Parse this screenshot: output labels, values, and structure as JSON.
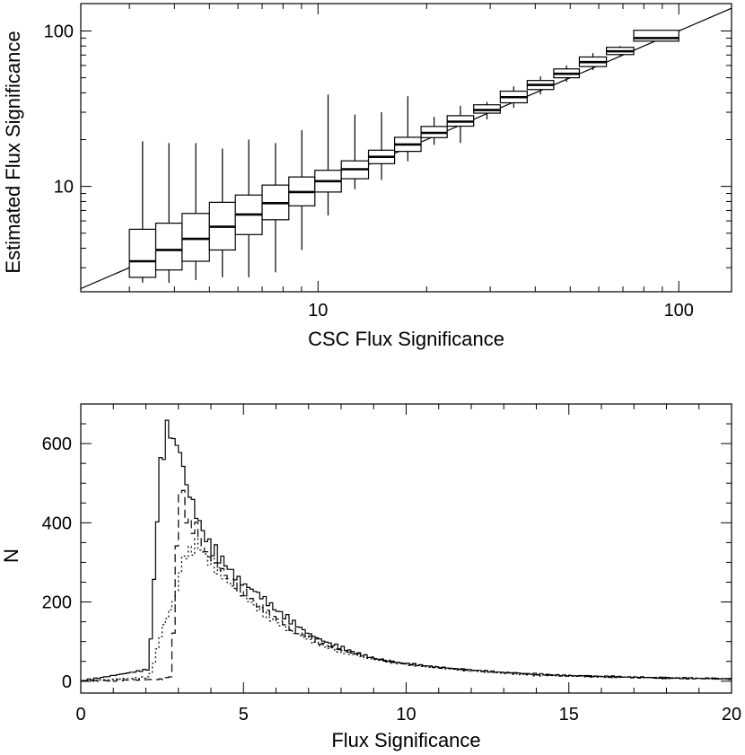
{
  "chart_data": [
    {
      "type": "box",
      "scale": "log-log",
      "title": "",
      "xlabel": "CSC Flux Significance",
      "ylabel": "Estimated Flux Significance",
      "xlim": [
        2.2,
        140
      ],
      "ylim": [
        2.1,
        150
      ],
      "xticks": [
        {
          "value": 10,
          "label": "10"
        },
        {
          "value": 100,
          "label": "100"
        }
      ],
      "yticks": [
        {
          "value": 10,
          "label": "10"
        },
        {
          "value": 100,
          "label": "100"
        }
      ],
      "reference_line": "y = x",
      "boxes": [
        {
          "x0": 3.0,
          "x1": 3.55,
          "q1": 2.6,
          "median": 3.3,
          "q3": 5.3,
          "wlo": 2.4,
          "whi": 19.5
        },
        {
          "x0": 3.55,
          "x1": 4.2,
          "q1": 2.9,
          "median": 3.9,
          "q3": 5.8,
          "wlo": 2.4,
          "whi": 19.0
        },
        {
          "x0": 4.2,
          "x1": 5.0,
          "q1": 3.3,
          "median": 4.6,
          "q3": 6.7,
          "wlo": 2.5,
          "whi": 19.0
        },
        {
          "x0": 5.0,
          "x1": 5.9,
          "q1": 3.9,
          "median": 5.5,
          "q3": 7.9,
          "wlo": 2.6,
          "whi": 17.5
        },
        {
          "x0": 5.9,
          "x1": 7.0,
          "q1": 4.9,
          "median": 6.6,
          "q3": 8.8,
          "wlo": 2.6,
          "whi": 20.0
        },
        {
          "x0": 7.0,
          "x1": 8.3,
          "q1": 6.1,
          "median": 7.8,
          "q3": 10.2,
          "wlo": 2.8,
          "whi": 19.0
        },
        {
          "x0": 8.3,
          "x1": 9.8,
          "q1": 7.5,
          "median": 9.2,
          "q3": 11.5,
          "wlo": 3.9,
          "whi": 23.0
        },
        {
          "x0": 9.8,
          "x1": 11.6,
          "q1": 9.2,
          "median": 10.8,
          "q3": 12.7,
          "wlo": 6.5,
          "whi": 39.0
        },
        {
          "x0": 11.6,
          "x1": 13.8,
          "q1": 11.2,
          "median": 12.9,
          "q3": 14.6,
          "wlo": 9.6,
          "whi": 29.0
        },
        {
          "x0": 13.8,
          "x1": 16.3,
          "q1": 14.0,
          "median": 15.5,
          "q3": 17.1,
          "wlo": 11.0,
          "whi": 30.0
        },
        {
          "x0": 16.3,
          "x1": 19.3,
          "q1": 16.8,
          "median": 18.6,
          "q3": 20.7,
          "wlo": 14.5,
          "whi": 38.0
        },
        {
          "x0": 19.3,
          "x1": 22.8,
          "q1": 20.6,
          "median": 22.1,
          "q3": 24.3,
          "wlo": 18.5,
          "whi": 28.0
        },
        {
          "x0": 22.8,
          "x1": 27.0,
          "q1": 24.4,
          "median": 26.1,
          "q3": 28.5,
          "wlo": 19.0,
          "whi": 33.0
        },
        {
          "x0": 27.0,
          "x1": 32.0,
          "q1": 29.6,
          "median": 31.0,
          "q3": 33.5,
          "wlo": 27.0,
          "whi": 35.0
        },
        {
          "x0": 32.0,
          "x1": 38.0,
          "q1": 34.5,
          "median": 37.5,
          "q3": 41.0,
          "wlo": 32.0,
          "whi": 44.0
        },
        {
          "x0": 38.0,
          "x1": 45.0,
          "q1": 42.0,
          "median": 45.0,
          "q3": 48.0,
          "wlo": 39.0,
          "whi": 51.0
        },
        {
          "x0": 45.0,
          "x1": 53.0,
          "q1": 50.0,
          "median": 53.0,
          "q3": 57.0,
          "wlo": 47.0,
          "whi": 60.0
        },
        {
          "x0": 53.0,
          "x1": 63.0,
          "q1": 59.0,
          "median": 63.0,
          "q3": 68.0,
          "wlo": 56.0,
          "whi": 72.0
        },
        {
          "x0": 63.0,
          "x1": 75.0,
          "q1": 70.5,
          "median": 74.0,
          "q3": 78.5,
          "wlo": 68.0,
          "whi": 80.0
        },
        {
          "x0": 75.0,
          "x1": 100.0,
          "q1": 86.0,
          "median": 90.0,
          "q3": 101.0,
          "wlo": 86.0,
          "whi": 101.0
        }
      ]
    },
    {
      "type": "histogram",
      "title": "",
      "xlabel": "Flux Significance",
      "ylabel": "N",
      "xlim": [
        0,
        20
      ],
      "ylim": [
        -30,
        700
      ],
      "xticks": [
        {
          "value": 0,
          "label": "0"
        },
        {
          "value": 5,
          "label": "5"
        },
        {
          "value": 10,
          "label": "10"
        },
        {
          "value": 15,
          "label": "15"
        },
        {
          "value": 20,
          "label": "20"
        }
      ],
      "yticks": [
        {
          "value": 0,
          "label": "0"
        },
        {
          "value": 200,
          "label": "200"
        },
        {
          "value": 400,
          "label": "400"
        },
        {
          "value": 600,
          "label": "600"
        }
      ],
      "bin_width": 0.1,
      "series": [
        {
          "name": "solid",
          "style": "solid",
          "x": [
            0,
            2.1,
            2.2,
            2.3,
            2.4,
            2.5,
            2.6,
            2.7,
            2.8,
            2.9,
            3.0,
            3.1,
            3.2,
            3.3,
            3.4,
            3.5,
            3.6,
            3.7,
            3.8,
            3.9,
            4.0,
            4.2,
            4.4,
            4.6,
            4.8,
            5.0,
            5.2,
            5.4,
            5.6,
            5.8,
            6.0,
            6.5,
            7.0,
            7.5,
            8.0,
            8.5,
            9.0,
            9.5,
            10.0,
            10.5,
            11.0,
            12.0,
            13.0,
            14.0,
            15.0,
            16.0,
            17.0,
            18.0,
            19.0,
            20.0
          ],
          "values": [
            0,
            30,
            180,
            330,
            500,
            580,
            600,
            660,
            610,
            595,
            600,
            560,
            520,
            470,
            470,
            430,
            410,
            390,
            370,
            350,
            340,
            320,
            300,
            280,
            260,
            245,
            235,
            225,
            210,
            195,
            180,
            150,
            120,
            100,
            85,
            70,
            58,
            50,
            44,
            40,
            35,
            28,
            22,
            18,
            14,
            12,
            10,
            8,
            7,
            6
          ]
        },
        {
          "name": "dashed",
          "style": "dashed",
          "x": [
            0,
            2.6,
            2.7,
            2.8,
            2.9,
            3.0,
            3.1,
            3.2,
            3.3,
            3.4,
            3.5,
            3.6,
            3.7,
            3.8,
            3.9,
            4.0,
            4.2,
            4.4,
            4.6,
            4.8,
            5.0,
            5.5,
            6.0,
            6.5,
            7.0,
            7.5,
            8.0,
            9.0,
            10.0,
            11.0,
            12.0,
            13.0,
            14.0,
            16.0,
            18.0,
            20.0
          ],
          "values": [
            0,
            5,
            10,
            15,
            220,
            470,
            490,
            440,
            400,
            380,
            400,
            380,
            350,
            330,
            320,
            310,
            290,
            275,
            255,
            240,
            225,
            190,
            160,
            130,
            110,
            92,
            78,
            58,
            44,
            35,
            28,
            22,
            16,
            12,
            8,
            6
          ]
        },
        {
          "name": "dotted",
          "style": "dotted",
          "x": [
            0,
            2.1,
            2.2,
            2.3,
            2.4,
            2.5,
            2.6,
            2.7,
            2.8,
            2.9,
            3.0,
            3.1,
            3.2,
            3.3,
            3.4,
            3.5,
            3.6,
            3.7,
            3.8,
            3.9,
            4.0,
            4.2,
            4.4,
            4.6,
            4.8,
            5.0,
            5.5,
            6.0,
            6.5,
            7.0,
            7.5,
            8.0,
            9.0,
            10.0,
            11.0,
            12.0,
            13.0,
            14.0,
            16.0,
            18.0,
            20.0
          ],
          "values": [
            0,
            10,
            30,
            60,
            100,
            130,
            150,
            170,
            190,
            210,
            250,
            300,
            320,
            320,
            330,
            340,
            350,
            330,
            320,
            310,
            300,
            280,
            260,
            245,
            230,
            215,
            180,
            150,
            125,
            105,
            88,
            74,
            55,
            42,
            33,
            26,
            20,
            15,
            11,
            8,
            6
          ]
        }
      ]
    }
  ]
}
